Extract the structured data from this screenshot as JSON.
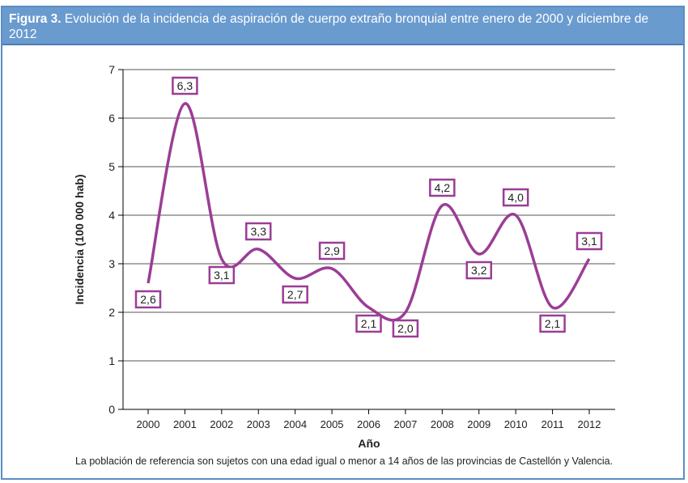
{
  "figure": {
    "label": "Figura 3.",
    "title": "Evolución de la incidencia de aspiración de cuerpo extraño bronquial entre enero de 2000 y diciembre de 2012",
    "note": "La población de referencia son sujetos con una edad igual o menor a 14 años de las provincias de Castellón y Valencia."
  },
  "chart_data": {
    "type": "line",
    "xlabel": "Año",
    "ylabel": "Incidencia (100 000 hab)",
    "ylim": [
      0,
      7
    ],
    "yticks": [
      "0",
      "1",
      "2",
      "3",
      "4",
      "5",
      "6",
      "7"
    ],
    "grid": true,
    "categories": [
      "2000",
      "2001",
      "2002",
      "2003",
      "2004",
      "2005",
      "2006",
      "2007",
      "2008",
      "2009",
      "2010",
      "2011",
      "2012"
    ],
    "values": [
      2.6,
      6.3,
      3.1,
      3.3,
      2.7,
      2.9,
      2.1,
      2.0,
      4.2,
      3.2,
      4.0,
      2.1,
      3.1
    ],
    "data_labels": [
      "2,6",
      "6,3",
      "3,1",
      "3,3",
      "2,7",
      "2,9",
      "2,1",
      "2,0",
      "4,2",
      "3,2",
      "4,0",
      "2,1",
      "3,1"
    ],
    "colors": {
      "line": "#9b3d96",
      "header": "#6a9bcf",
      "grid": "#555555"
    }
  }
}
